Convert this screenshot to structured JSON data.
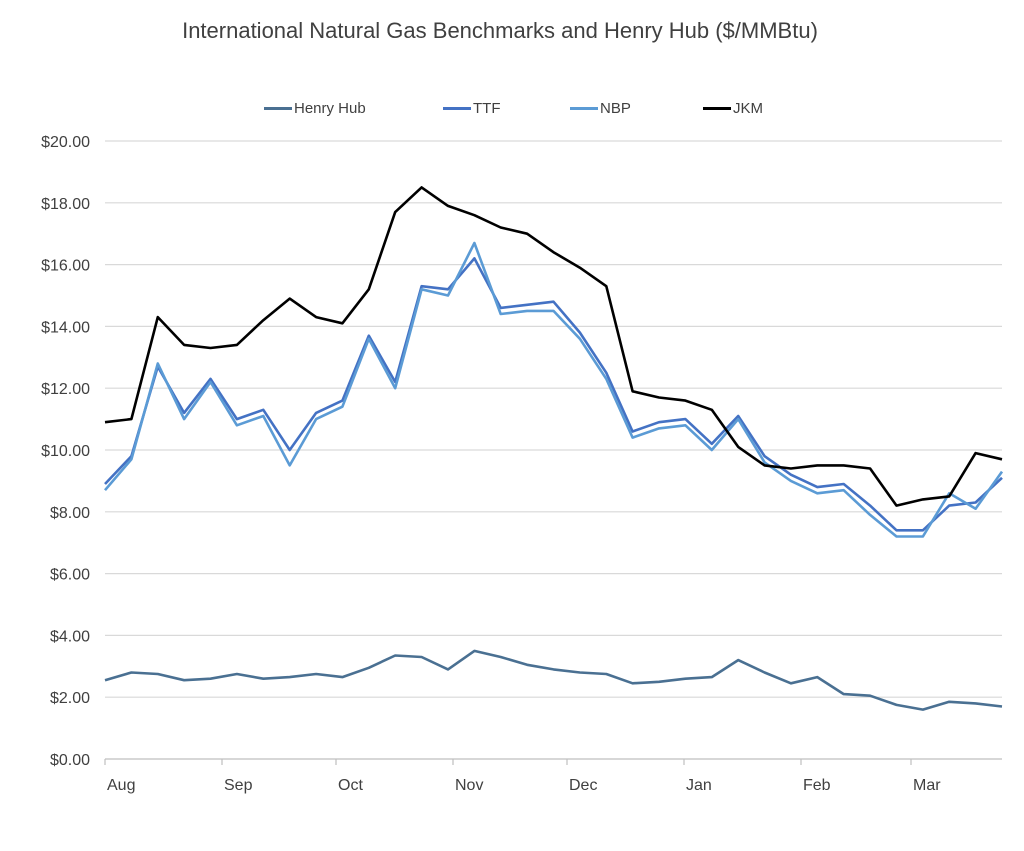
{
  "chart_data": {
    "type": "line",
    "title": "International Natural Gas Benchmarks and Henry Hub ($/MMBtu)",
    "xlabel": "",
    "ylabel": "",
    "ylim": [
      0,
      20
    ],
    "y_ticks": [
      "$0.00",
      "$2.00",
      "$4.00",
      "$6.00",
      "$8.00",
      "$10.00",
      "$12.00",
      "$14.00",
      "$16.00",
      "$18.00",
      "$20.00"
    ],
    "x_ticks": [
      "Aug",
      "Sep",
      "Oct",
      "Nov",
      "Dec",
      "Jan",
      "Feb",
      "Mar"
    ],
    "grid": "horizontal",
    "legend_position": "top",
    "x": [
      "Aug-1",
      "Aug-8",
      "Aug-15",
      "Aug-22",
      "Aug-29",
      "Sep-5",
      "Sep-12",
      "Sep-19",
      "Sep-26",
      "Oct-3",
      "Oct-10",
      "Oct-17",
      "Oct-24",
      "Oct-31",
      "Nov-7",
      "Nov-14",
      "Nov-21",
      "Nov-28",
      "Dec-5",
      "Dec-12",
      "Dec-19",
      "Dec-26",
      "Jan-2",
      "Jan-9",
      "Jan-16",
      "Jan-23",
      "Jan-30",
      "Feb-6",
      "Feb-13",
      "Feb-20",
      "Feb-27",
      "Mar-6",
      "Mar-13",
      "Mar-20",
      "Mar-27"
    ],
    "series": [
      {
        "name": "Henry Hub",
        "color": "#4a7092",
        "values": [
          2.55,
          2.8,
          2.75,
          2.55,
          2.6,
          2.75,
          2.6,
          2.65,
          2.75,
          2.65,
          2.95,
          3.35,
          3.3,
          2.9,
          3.5,
          3.3,
          3.05,
          2.9,
          2.8,
          2.75,
          2.45,
          2.5,
          2.6,
          2.65,
          3.2,
          2.8,
          2.45,
          2.65,
          2.1,
          2.05,
          1.75,
          1.6,
          1.85,
          1.8,
          1.7
        ]
      },
      {
        "name": "TTF",
        "color": "#4472c4",
        "values": [
          8.9,
          9.8,
          12.7,
          11.2,
          12.3,
          11.0,
          11.3,
          10.0,
          11.2,
          11.6,
          13.7,
          12.2,
          15.3,
          15.2,
          16.2,
          14.6,
          14.7,
          14.8,
          13.8,
          12.5,
          10.6,
          10.9,
          11.0,
          10.2,
          11.1,
          9.8,
          9.2,
          8.8,
          8.9,
          8.2,
          7.4,
          7.4,
          8.2,
          8.3,
          9.1
        ]
      },
      {
        "name": "NBP",
        "color": "#5b9bd5",
        "values": [
          8.7,
          9.7,
          12.8,
          11.0,
          12.2,
          10.8,
          11.1,
          9.5,
          11.0,
          11.4,
          13.6,
          12.0,
          15.2,
          15.0,
          16.7,
          14.4,
          14.5,
          14.5,
          13.6,
          12.3,
          10.4,
          10.7,
          10.8,
          10.0,
          11.0,
          9.6,
          9.0,
          8.6,
          8.7,
          7.9,
          7.2,
          7.2,
          8.6,
          8.1,
          9.3
        ]
      },
      {
        "name": "JKM",
        "color": "#000000",
        "values": [
          10.9,
          11.0,
          14.3,
          13.4,
          13.3,
          13.4,
          14.2,
          14.9,
          14.3,
          14.1,
          15.2,
          17.7,
          18.5,
          17.9,
          17.6,
          17.2,
          17.0,
          16.4,
          15.9,
          15.3,
          11.9,
          11.7,
          11.6,
          11.3,
          10.1,
          9.5,
          9.4,
          9.5,
          9.5,
          9.4,
          8.2,
          8.4,
          8.5,
          9.9,
          9.7
        ]
      }
    ]
  },
  "legend": {
    "items": [
      {
        "label": "Henry Hub",
        "color": "#4a7092"
      },
      {
        "label": "TTF",
        "color": "#4472c4"
      },
      {
        "label": "NBP",
        "color": "#5b9bd5"
      },
      {
        "label": "JKM",
        "color": "#000000"
      }
    ]
  },
  "colors": {
    "grid": "#d9d9d9",
    "axis": "#bfbfbf",
    "text": "#404040"
  }
}
